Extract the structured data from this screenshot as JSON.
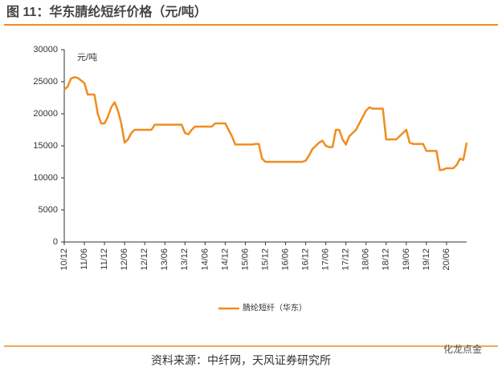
{
  "chart_data": {
    "type": "line",
    "title": "图 11：华东腈纶短纤价格（元/吨）",
    "y_label": "元/吨",
    "source": "资料来源：中纤网，天风证券研究所",
    "watermark": "化龙点金",
    "categories": [
      "10/12",
      null,
      null,
      null,
      null,
      null,
      "11/06",
      null,
      null,
      null,
      null,
      null,
      "11/12",
      null,
      null,
      null,
      null,
      null,
      "12/06",
      null,
      null,
      null,
      null,
      null,
      "12/12",
      null,
      null,
      null,
      null,
      null,
      "13/06",
      null,
      null,
      null,
      null,
      null,
      "13/12",
      null,
      null,
      null,
      null,
      null,
      "14/06",
      null,
      null,
      null,
      null,
      null,
      "14/12",
      null,
      null,
      null,
      null,
      null,
      "15/06",
      null,
      null,
      null,
      null,
      null,
      "15/12",
      null,
      null,
      null,
      null,
      null,
      "16/06",
      null,
      null,
      null,
      null,
      null,
      "16/12",
      null,
      null,
      null,
      null,
      null,
      "17/06",
      null,
      null,
      null,
      null,
      null,
      "17/12",
      null,
      null,
      null,
      null,
      null,
      "18/06",
      null,
      null,
      null,
      null,
      null,
      "18/12",
      null,
      null,
      null,
      null,
      null,
      "19/06",
      null,
      null,
      null,
      null,
      null,
      "19/12",
      null,
      null,
      null,
      null,
      null,
      "20/06",
      null,
      null,
      null,
      null,
      null,
      null
    ],
    "series": [
      {
        "name": "腈纶短纤（华东）",
        "color": "#f08c1e",
        "values": [
          23800,
          24200,
          25500,
          25700,
          25600,
          25200,
          24800,
          23000,
          23000,
          23000,
          20000,
          18500,
          18500,
          19500,
          21000,
          21800,
          20500,
          18500,
          15500,
          16000,
          17000,
          17500,
          17500,
          17500,
          17500,
          17500,
          17500,
          18300,
          18300,
          18300,
          18300,
          18300,
          18300,
          18300,
          18300,
          18300,
          17000,
          16800,
          17500,
          18000,
          18000,
          18000,
          18000,
          18000,
          18000,
          18500,
          18500,
          18500,
          18500,
          17500,
          16500,
          15200,
          15200,
          15200,
          15200,
          15200,
          15200,
          15300,
          15300,
          13000,
          12500,
          12500,
          12500,
          12500,
          12500,
          12500,
          12500,
          12500,
          12500,
          12500,
          12500,
          12500,
          12700,
          13500,
          14500,
          15000,
          15500,
          15800,
          15000,
          14800,
          14800,
          17500,
          17500,
          16000,
          15200,
          16500,
          17000,
          17500,
          18500,
          19500,
          20500,
          21000,
          20800,
          20800,
          20800,
          20800,
          16000,
          16000,
          16000,
          16000,
          16500,
          17000,
          17500,
          15500,
          15300,
          15300,
          15300,
          15300,
          14200,
          14200,
          14200,
          14200,
          11200,
          11300,
          11500,
          11500,
          11500,
          12000,
          13000,
          12800,
          15500
        ]
      }
    ],
    "ylim": [
      0,
      30000
    ],
    "yticks": [
      0,
      5000,
      10000,
      15000,
      20000,
      25000,
      30000
    ],
    "grid": false
  }
}
